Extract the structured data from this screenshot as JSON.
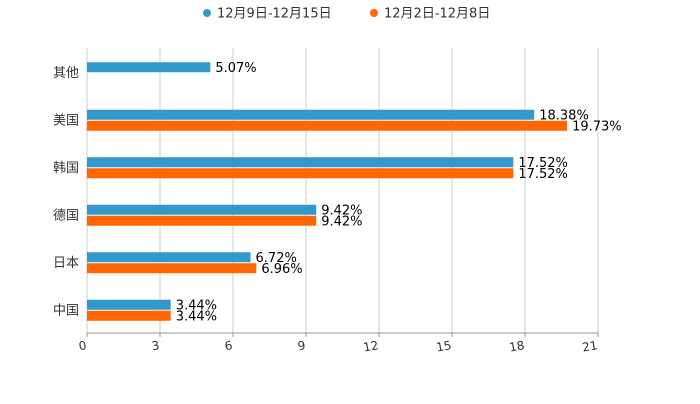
{
  "chart_data": {
    "type": "bar",
    "orientation": "horizontal",
    "title": "",
    "xlabel": "",
    "ylabel": "",
    "categories": [
      "其他",
      "美国",
      "韩国",
      "德国",
      "日本",
      "中国"
    ],
    "series": [
      {
        "name": "12月9日-12月15日",
        "color": "#3399CC",
        "values": [
          5.07,
          18.38,
          17.52,
          9.42,
          6.72,
          3.44
        ],
        "labels": [
          "5.07%",
          "18.38%",
          "17.52%",
          "9.42%",
          "6.72%",
          "3.44%"
        ]
      },
      {
        "name": "12月2日-12月8日",
        "color": "#FF6600",
        "values": [
          null,
          19.73,
          17.52,
          9.42,
          6.96,
          3.44
        ],
        "labels": [
          null,
          "19.73%",
          "17.52%",
          "9.42%",
          "6.96%",
          "3.44%"
        ]
      }
    ],
    "xlim": [
      0,
      21
    ],
    "xticks": [
      "0",
      "3",
      "6",
      "9",
      "12",
      "15",
      "18",
      "21"
    ],
    "grid": true,
    "legend_position": "top-center",
    "colors": {
      "grid": "#cccccc",
      "axis": "#999999",
      "text": "#333333"
    }
  }
}
